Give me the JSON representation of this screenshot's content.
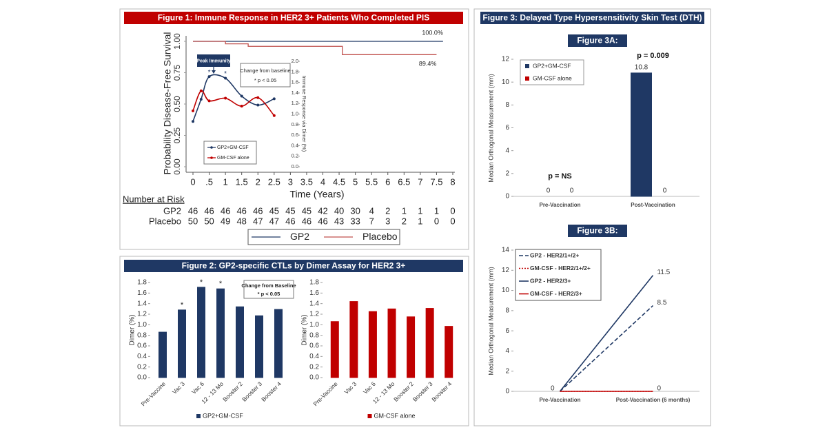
{
  "panel_titles": [
    "Figure 1: Immune Response in HER2 3+ Patients Who Completed PIS",
    "Figure 2: GP2-specific CTLs by Dimer Assay for HER2 3+",
    "Figure 3: Delayed Type Hypersensitivity Skin Test (DTH)"
  ],
  "chart_data": [
    {
      "type": "step",
      "ylabel": "Probability Disease-Free Survival",
      "xlabel": "Time (Years)",
      "xlim": [
        0,
        8
      ],
      "ylim": [
        0,
        1
      ],
      "xticks": [
        0,
        {
          "value": 0.5,
          "label": ".5"
        },
        1,
        1.5,
        2,
        2.5,
        3,
        3.5,
        4,
        4.5,
        5,
        5.5,
        6,
        6.5,
        7,
        7.5,
        8
      ],
      "yticks": [
        {
          "value": 0,
          "label": "0.00"
        },
        {
          "value": 0.25,
          "label": "0.25"
        },
        {
          "value": 0.5,
          "label": "0.50"
        },
        {
          "value": 0.75,
          "label": "0.75"
        },
        {
          "value": 1,
          "label": "1.00"
        }
      ],
      "series": [
        {
          "name": "GP2",
          "color": "#1f3864",
          "x": [
            0,
            7.7
          ],
          "values": [
            1,
            1
          ],
          "end_label": "100.0%"
        },
        {
          "name": "Placebo",
          "color": "#c0504d",
          "x": [
            0,
            1,
            1,
            1.7,
            1.7,
            4.6,
            4.6,
            7.5
          ],
          "values": [
            1,
            1,
            0.98,
            0.98,
            0.96,
            0.96,
            0.894,
            0.894
          ],
          "end_label": "89.4%"
        }
      ],
      "risk_table": {
        "title": "Number at Risk",
        "rows": [
          {
            "name": "GP2",
            "values": [
              46,
              46,
              46,
              46,
              46,
              45,
              45,
              45,
              42,
              40,
              30,
              4,
              2,
              1,
              1,
              1,
              0
            ]
          },
          {
            "name": "Placebo",
            "values": [
              50,
              50,
              49,
              48,
              47,
              47,
              46,
              46,
              46,
              43,
              33,
              7,
              3,
              2,
              1,
              0,
              0
            ]
          }
        ]
      }
    },
    {
      "type": "line",
      "ylabel": "Immune Response via Dimer (%)",
      "xlim": [
        0,
        8
      ],
      "x": [
        0,
        0.25,
        0.5,
        1,
        1.5,
        2,
        2.5
      ],
      "y2lim": [
        0,
        2
      ],
      "y2ticks": [
        {
          "value": 0,
          "label": "0.0"
        },
        {
          "value": 0.2,
          "label": "0.2"
        },
        {
          "value": 0.4,
          "label": "0.4"
        },
        {
          "value": 0.6,
          "label": "0.6"
        },
        {
          "value": 0.8,
          "label": "0.8"
        },
        {
          "value": 1,
          "label": "1.0"
        },
        {
          "value": 1.2,
          "label": "1.2"
        },
        {
          "value": 1.4,
          "label": "1.4"
        },
        {
          "value": 1.6,
          "label": "1.6"
        },
        {
          "value": 1.8,
          "label": "1.8"
        },
        {
          "value": 2,
          "label": "2.0"
        }
      ],
      "markers": true,
      "smooth": true,
      "series": [
        {
          "name": "GP2+GM-CSF",
          "color": "#1f3864",
          "axis": "y2",
          "values": [
            0.86,
            1.28,
            1.71,
            1.68,
            1.34,
            1.17,
            1.29
          ],
          "point_labels": [
            null,
            null,
            "*",
            "*",
            null,
            null,
            null
          ]
        },
        {
          "name": "GM-CSF alone",
          "color": "#c00000",
          "axis": "y2",
          "values": [
            1.06,
            1.44,
            1.25,
            1.3,
            1.15,
            1.31,
            0.97
          ]
        }
      ],
      "annotations": [
        "Peak Immunity",
        "Change from baseline",
        "* p < 0.05"
      ]
    },
    {
      "type": "bar",
      "ylabel": "Dimer (%)",
      "categories": [
        "Pre-Vaccine",
        "Vac 3",
        "Vac 6",
        "12 - 13 Mo",
        "Booster 2",
        "Booster 3",
        "Booster 4"
      ],
      "ylim": [
        0,
        1.8
      ],
      "yticks": [
        {
          "value": 0,
          "label": "0.0"
        },
        {
          "value": 0.2,
          "label": "0.2"
        },
        {
          "value": 0.4,
          "label": "0.4"
        },
        {
          "value": 0.6,
          "label": "0.6"
        },
        {
          "value": 0.8,
          "label": "0.8"
        },
        {
          "value": 1,
          "label": "1.0"
        },
        {
          "value": 1.2,
          "label": "1.2"
        },
        {
          "value": 1.4,
          "label": "1.4"
        },
        {
          "value": 1.6,
          "label": "1.6"
        },
        {
          "value": 1.8,
          "label": "1.8"
        }
      ],
      "series": [
        {
          "name": "GP2+GM-CSF",
          "color": "#1f3864",
          "values": [
            0.86,
            1.28,
            1.71,
            1.68,
            1.34,
            1.17,
            1.29
          ],
          "point_labels": [
            null,
            "*",
            "*",
            "*",
            null,
            null,
            null
          ]
        }
      ],
      "annotations": [
        "Change from Baseline",
        "* p < 0.05"
      ]
    },
    {
      "type": "bar",
      "ylabel": "Dimer (%)",
      "categories": [
        "Pre-Vaccine",
        "Vac 3",
        "Vac 6",
        "12 - 13 Mo",
        "Booster 2",
        "Booster 3",
        "Booster 4"
      ],
      "ylim": [
        0,
        1.8
      ],
      "yticks": [
        {
          "value": 0,
          "label": "0.0"
        },
        {
          "value": 0.2,
          "label": "0.2"
        },
        {
          "value": 0.4,
          "label": "0.4"
        },
        {
          "value": 0.6,
          "label": "0.6"
        },
        {
          "value": 0.8,
          "label": "0.8"
        },
        {
          "value": 1,
          "label": "1.0"
        },
        {
          "value": 1.2,
          "label": "1.2"
        },
        {
          "value": 1.4,
          "label": "1.4"
        },
        {
          "value": 1.6,
          "label": "1.6"
        },
        {
          "value": 1.8,
          "label": "1.8"
        }
      ],
      "series": [
        {
          "name": "GM-CSF alone",
          "color": "#c00000",
          "values": [
            1.06,
            1.44,
            1.25,
            1.3,
            1.15,
            1.31,
            0.97
          ]
        }
      ]
    },
    {
      "type": "bar",
      "title": "Figure 3A:",
      "ylabel": "Median Orthogonal Measurement (mm)",
      "categories": [
        "Pre-Vaccination",
        "Post-Vaccination"
      ],
      "group_labels": [
        "p = NS",
        "p = 0.009"
      ],
      "ylim": [
        0,
        12
      ],
      "yticks": [
        0,
        2,
        4,
        6,
        8,
        10,
        12
      ],
      "data_labels": true,
      "series": [
        {
          "name": "GP2+GM-CSF",
          "color": "#1f3864",
          "values": [
            0,
            10.8
          ]
        },
        {
          "name": "GM-CSF alone",
          "color": "#c00000",
          "values": [
            0,
            0
          ]
        }
      ]
    },
    {
      "type": "line",
      "title": "Figure 3B:",
      "ylabel": "Median Orthogonal Measurement (mm)",
      "categories": [
        "Pre-Vaccination",
        "Post-Vaccination (6 months)"
      ],
      "ylim": [
        0,
        14
      ],
      "yticks": [
        0,
        2,
        4,
        6,
        8,
        10,
        12,
        14
      ],
      "series": [
        {
          "name": "GP2 - HER2/1+/2+",
          "color": "#1f3864",
          "dash": "dashed",
          "values": [
            0,
            8.5
          ],
          "value_labels": [
            null,
            "8.5"
          ]
        },
        {
          "name": "GM-CSF - HER2/1+/2+",
          "color": "#c00000",
          "dash": "dotted",
          "values": [
            0,
            0
          ],
          "value_labels": [
            null,
            null
          ]
        },
        {
          "name": "GP2 - HER2/3+",
          "color": "#1f3864",
          "dash": "solid",
          "values": [
            0,
            11.5
          ],
          "value_labels": [
            "0",
            "11.5"
          ]
        },
        {
          "name": "GM-CSF - HER2/3+",
          "color": "#c00000",
          "dash": "solid",
          "values": [
            0,
            0
          ],
          "value_labels": [
            null,
            "0"
          ]
        }
      ]
    }
  ]
}
